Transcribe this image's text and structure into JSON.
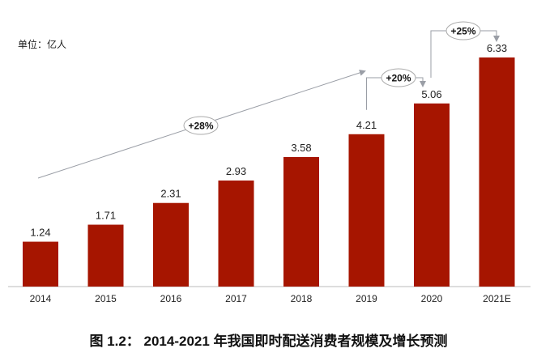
{
  "chart_data": {
    "type": "bar",
    "title": "图 1.2： 2014-2021 年我国即时配送消费者规模及增长预测",
    "unit_label": "单位：亿人",
    "categories": [
      "2014",
      "2015",
      "2016",
      "2017",
      "2018",
      "2019",
      "2020",
      "2021E"
    ],
    "values": [
      1.24,
      1.71,
      2.31,
      2.93,
      3.58,
      4.21,
      5.06,
      6.33
    ],
    "ylim": [
      0,
      6.33
    ],
    "bar_color": "#A61500",
    "annotations": [
      {
        "label": "+28%",
        "from": "2014",
        "to": "2019"
      },
      {
        "label": "+20%",
        "from": "2019",
        "to": "2020"
      },
      {
        "label": "+25%",
        "from": "2020",
        "to": "2021E"
      }
    ]
  }
}
